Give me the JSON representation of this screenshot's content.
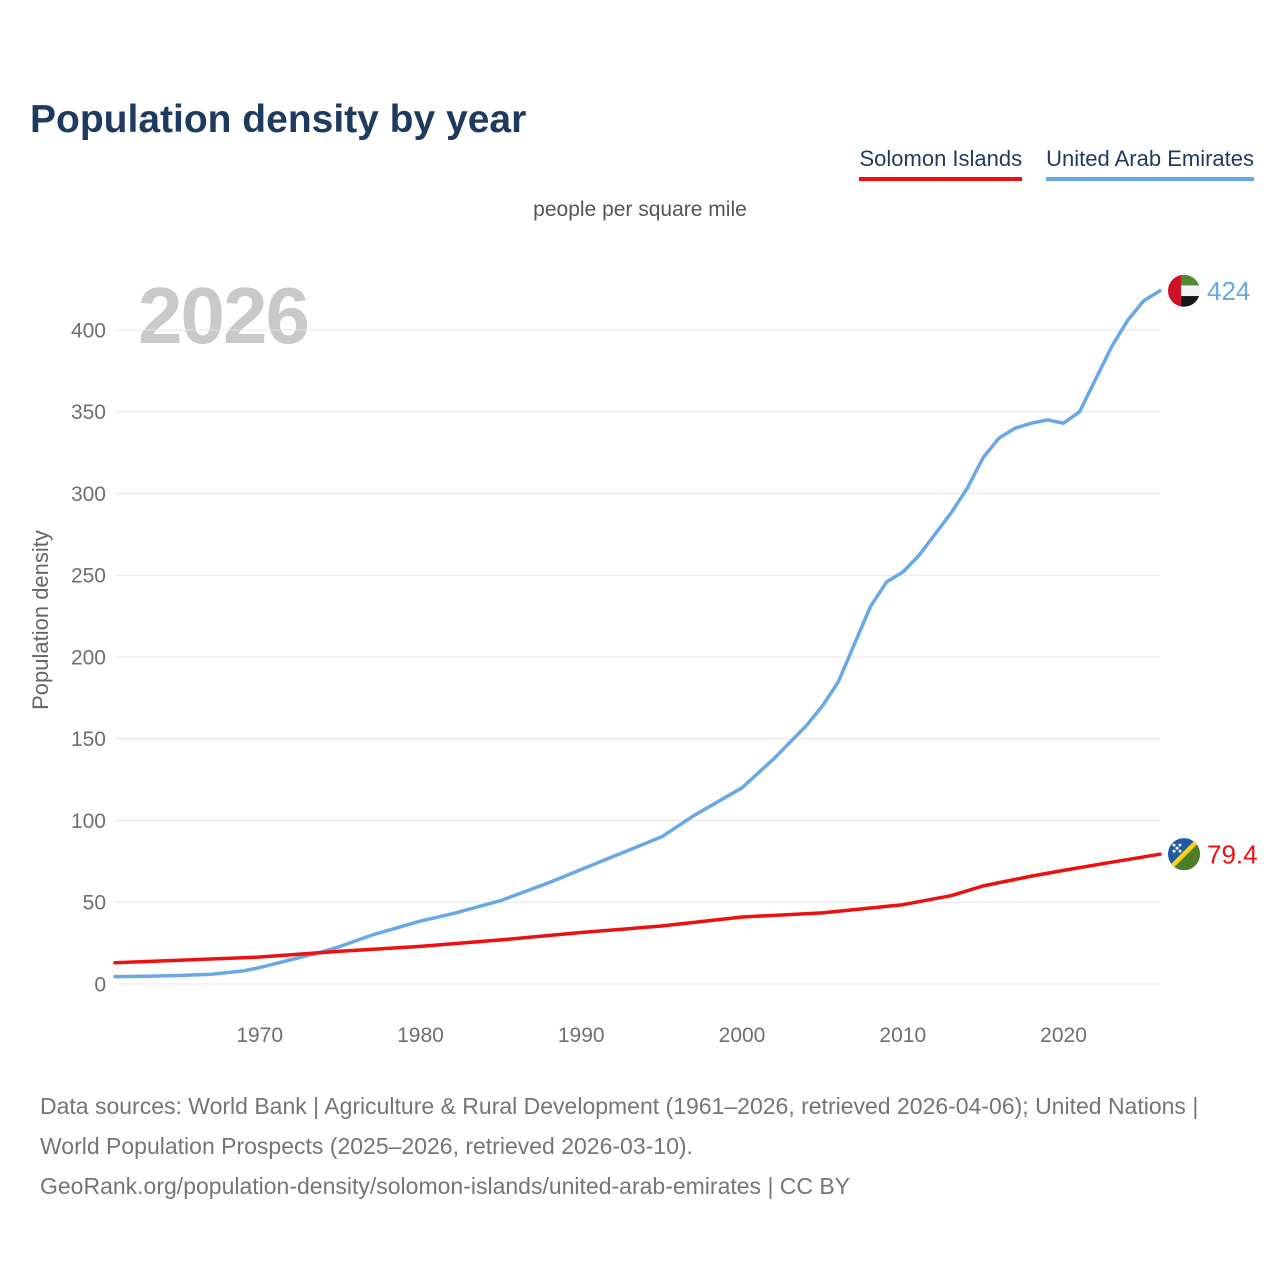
{
  "page": {
    "title": "Population density by year",
    "subtitle": "people per square mile",
    "watermark_year": "2026",
    "footer": {
      "sources": "Data sources: World Bank | Agriculture & Rural Development (1961–2026, retrieved 2026-04-06); United Nations | World Population Prospects (2025–2026, retrieved 2026-03-10).",
      "attribution": "GeoRank.org/population-density/solomon-islands/united-arab-emirates | CC BY"
    }
  },
  "legend": [
    {
      "label": "Solomon Islands",
      "color": "#ee1010"
    },
    {
      "label": "United Arab Emirates",
      "color": "#69a8e5"
    }
  ],
  "colors": {
    "title_text": "#1e3a5e",
    "axis_text": "#6f6f6f",
    "gridline": "#e7e7e7",
    "watermark": "#c9c9c9",
    "footer_text": "#757575",
    "solomon_islands_line": "#ee1010",
    "uae_line": "#69a8e5"
  },
  "chart_data": {
    "type": "line",
    "title": "Population density by year",
    "subtitle": "people per square mile",
    "ylabel": "Population density",
    "xlabel": "",
    "unit": "people per square mile",
    "watermark": "2026",
    "x_range": [
      1961,
      2026
    ],
    "ylim": [
      0,
      440
    ],
    "yticks": [
      0,
      50,
      100,
      150,
      200,
      250,
      300,
      350,
      400
    ],
    "xticks": [
      1970,
      1980,
      1990,
      2000,
      2010,
      2020
    ],
    "grid": "horizontal",
    "legend_position": "top-right",
    "series": [
      {
        "name": "Solomon Islands",
        "color": "#ee1010",
        "flag": "solomon-islands",
        "end_label": "79.4",
        "end_value": 79.4,
        "points": [
          [
            1961,
            13
          ],
          [
            1965,
            14.5
          ],
          [
            1970,
            16.5
          ],
          [
            1975,
            20
          ],
          [
            1980,
            23
          ],
          [
            1985,
            27
          ],
          [
            1990,
            31.5
          ],
          [
            1995,
            35.5
          ],
          [
            2000,
            41
          ],
          [
            2005,
            43.5
          ],
          [
            2008,
            46.5
          ],
          [
            2010,
            48.5
          ],
          [
            2013,
            54
          ],
          [
            2015,
            60
          ],
          [
            2018,
            66
          ],
          [
            2020,
            69.5
          ],
          [
            2023,
            74.5
          ],
          [
            2026,
            79.4
          ]
        ]
      },
      {
        "name": "United Arab Emirates",
        "color": "#69a8e5",
        "flag": "united-arab-emirates",
        "end_label": "424",
        "end_value": 424,
        "points": [
          [
            1961,
            4.5
          ],
          [
            1963,
            4.8
          ],
          [
            1965,
            5.2
          ],
          [
            1967,
            6
          ],
          [
            1969,
            8
          ],
          [
            1970,
            10
          ],
          [
            1972,
            15
          ],
          [
            1974,
            20
          ],
          [
            1975,
            23
          ],
          [
            1977,
            30
          ],
          [
            1980,
            38.5
          ],
          [
            1982,
            43
          ],
          [
            1985,
            51
          ],
          [
            1988,
            62
          ],
          [
            1990,
            70
          ],
          [
            1993,
            82
          ],
          [
            1995,
            90
          ],
          [
            1997,
            103
          ],
          [
            2000,
            120
          ],
          [
            2002,
            138
          ],
          [
            2004,
            158
          ],
          [
            2005,
            170
          ],
          [
            2006,
            185
          ],
          [
            2007,
            208
          ],
          [
            2008,
            231
          ],
          [
            2009,
            246
          ],
          [
            2010,
            252
          ],
          [
            2011,
            262
          ],
          [
            2012,
            275
          ],
          [
            2013,
            288
          ],
          [
            2014,
            303
          ],
          [
            2015,
            322
          ],
          [
            2016,
            334
          ],
          [
            2017,
            340
          ],
          [
            2018,
            343
          ],
          [
            2019,
            345
          ],
          [
            2020,
            343
          ],
          [
            2021,
            350
          ],
          [
            2022,
            370
          ],
          [
            2023,
            390
          ],
          [
            2024,
            406
          ],
          [
            2025,
            418
          ],
          [
            2026,
            424
          ]
        ]
      }
    ]
  }
}
